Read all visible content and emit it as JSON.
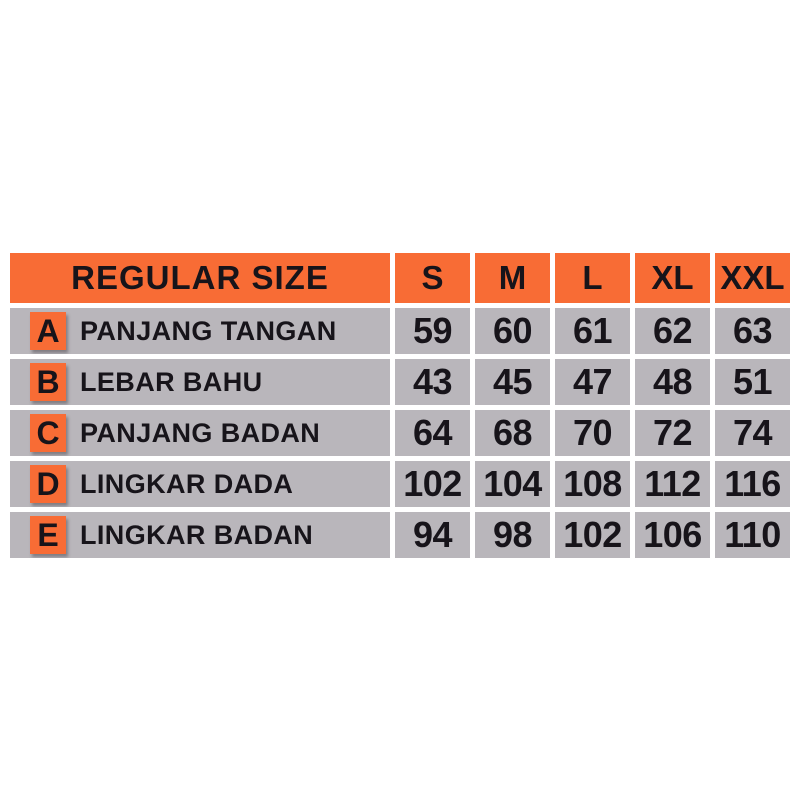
{
  "colors": {
    "orange": "#f86c35",
    "cell_gray": "#b9b6bb",
    "text_black": "#17141a",
    "white": "#ffffff"
  },
  "table": {
    "title": "REGULAR SIZE",
    "size_headers": [
      "S",
      "M",
      "L",
      "XL",
      "XXL"
    ],
    "rows": [
      {
        "key": "A",
        "label": "PANJANG TANGAN",
        "values": [
          59,
          60,
          61,
          62,
          63
        ]
      },
      {
        "key": "B",
        "label": "LEBAR BAHU",
        "values": [
          43,
          45,
          47,
          48,
          51
        ]
      },
      {
        "key": "C",
        "label": "PANJANG BADAN",
        "values": [
          64,
          68,
          70,
          72,
          74
        ]
      },
      {
        "key": "D",
        "label": "LINGKAR DADA",
        "values": [
          102,
          104,
          108,
          112,
          116
        ]
      },
      {
        "key": "E",
        "label": "LINGKAR BADAN",
        "values": [
          94,
          98,
          102,
          106,
          110
        ]
      }
    ]
  },
  "chart_data": {
    "type": "table",
    "title": "REGULAR SIZE",
    "columns": [
      "S",
      "M",
      "L",
      "XL",
      "XXL"
    ],
    "row_keys": [
      "A",
      "B",
      "C",
      "D",
      "E"
    ],
    "row_labels": [
      "PANJANG TANGAN",
      "LEBAR BAHU",
      "PANJANG BADAN",
      "LINGKAR DADA",
      "LINGKAR BADAN"
    ],
    "values": [
      [
        59,
        60,
        61,
        62,
        63
      ],
      [
        43,
        45,
        47,
        48,
        51
      ],
      [
        64,
        68,
        70,
        72,
        74
      ],
      [
        102,
        104,
        108,
        112,
        116
      ],
      [
        94,
        98,
        102,
        106,
        110
      ]
    ],
    "layout_hints": {
      "header_fill": "#f86c35",
      "body_fill": "#b9b6bb",
      "gutter_fill": "#ffffff",
      "grid": "off",
      "text_style": "bold black"
    }
  }
}
